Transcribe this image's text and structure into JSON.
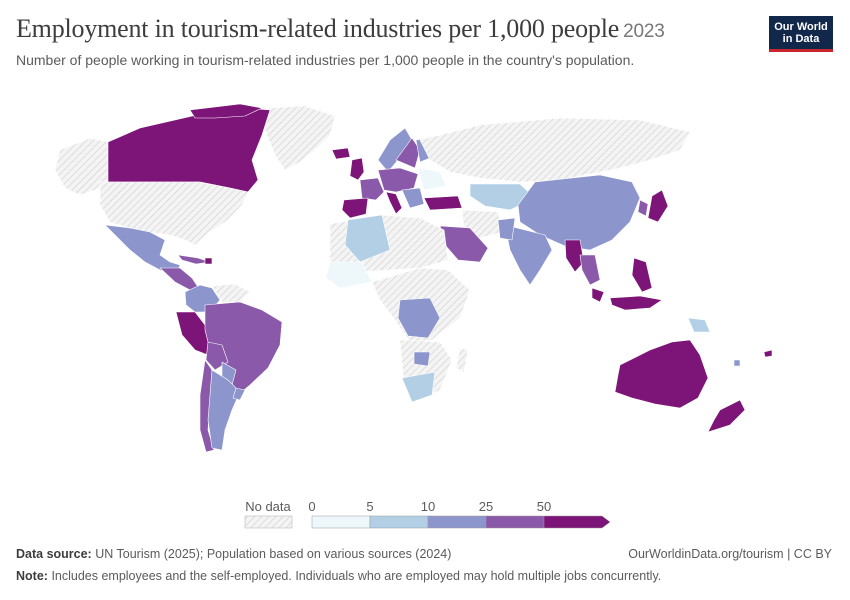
{
  "title": "Employment in tourism-related industries per 1,000 people",
  "year": "2023",
  "subtitle": "Number of people working in tourism-related industries per 1,000 people in the country's population.",
  "logo": {
    "line1": "Our World",
    "line2": "in Data"
  },
  "legend": {
    "no_data_label": "No data",
    "ticks": [
      "0",
      "5",
      "10",
      "25",
      "50"
    ],
    "colors": [
      "#eef8fb",
      "#b3cfe5",
      "#8c96cc",
      "#8b59a9",
      "#7d1477"
    ]
  },
  "source": {
    "label": "Data source:",
    "text": "UN Tourism (2025); Population based on various sources (2024)"
  },
  "credit": "OurWorldinData.org/tourism | CC BY",
  "note": {
    "label": "Note:",
    "text": "Includes employees and the self-employed. Individuals who are employed may hold multiple jobs concurrently."
  },
  "colors": {
    "nodata_fill": "#f2f2f2",
    "nodata_hatch": "#cfcfcf",
    "border": "#ffffff"
  }
}
